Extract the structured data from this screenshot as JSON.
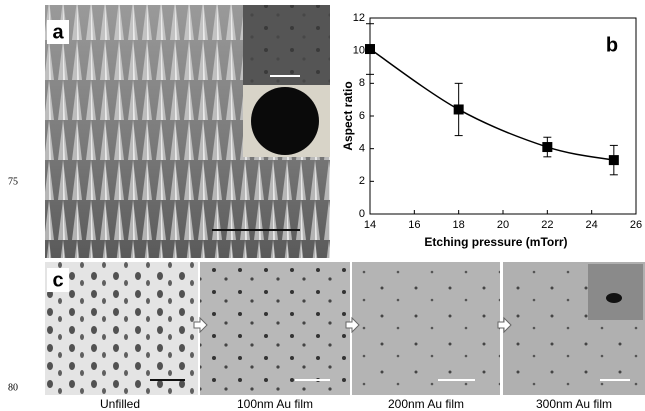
{
  "line_numbers": [
    "75",
    "80"
  ],
  "panel_a": {
    "label": "a"
  },
  "chart_data": {
    "type": "line",
    "label": "b",
    "x": [
      14,
      18,
      22,
      25
    ],
    "series": [
      {
        "values": [
          10.1,
          6.4,
          4.1,
          3.3
        ],
        "errors": [
          1.55,
          1.6,
          0.6,
          0.9
        ],
        "color": "#000000"
      }
    ],
    "xlabel": "Etching pressure (mTorr)",
    "ylabel": "Aspect ratio",
    "xlim": [
      14,
      26
    ],
    "xticks": [
      14,
      16,
      18,
      20,
      22,
      24,
      26
    ],
    "ylim": [
      0,
      12
    ],
    "yticks": [
      0,
      2,
      4,
      6,
      8,
      10,
      12
    ]
  },
  "panel_c": {
    "label": "c",
    "captions": [
      "Unfilled",
      "100nm Au film",
      "200nm Au film",
      "300nm Au film"
    ]
  }
}
